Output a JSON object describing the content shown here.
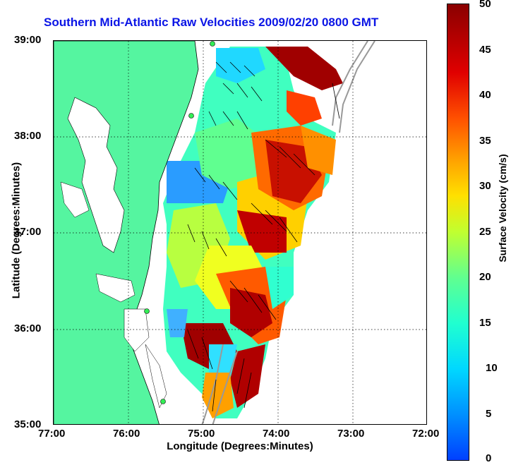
{
  "title": "Southern Mid-Atlantic Raw Velocities 2009/02/20 0800 GMT",
  "axes": {
    "xlabel": "Longitude (Degrees:Minutes)",
    "ylabel": "Latitude (Degrees:Minutes)",
    "x_ticks": [
      "77:00",
      "76:00",
      "75:00",
      "74:00",
      "73:00",
      "72:00"
    ],
    "y_ticks": [
      "39:00",
      "38:00",
      "37:00",
      "36:00",
      "35:00"
    ],
    "x_range": [
      -77,
      -72
    ],
    "y_range": [
      35,
      39
    ]
  },
  "colorbar": {
    "label": "Surface Velocity (cm/s)",
    "ticks": [
      "50",
      "45",
      "40",
      "35",
      "30",
      "25",
      "20",
      "15",
      "10",
      "5",
      "0"
    ],
    "range": [
      0,
      50
    ]
  },
  "colors": {
    "land": "#55f5a0",
    "title": "#0a14e6",
    "grid": "#000000"
  }
}
